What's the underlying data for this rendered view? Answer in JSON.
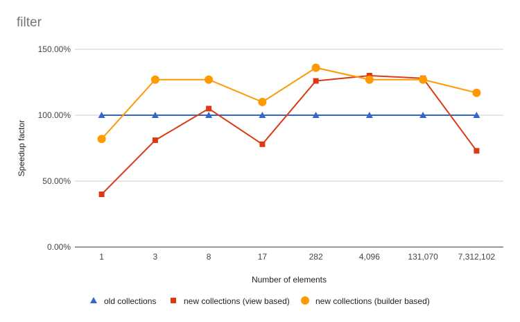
{
  "chart_data": {
    "type": "line",
    "title": "filter",
    "xlabel": "Number of elements",
    "ylabel": "Speedup factor",
    "categories": [
      "1",
      "3",
      "8",
      "17",
      "282",
      "4,096",
      "131,070",
      "7,312,102"
    ],
    "ylim": [
      0,
      150
    ],
    "yticks": [
      0,
      50,
      100,
      150
    ],
    "ytick_labels": [
      "0.00%",
      "50.00%",
      "100.00%",
      "150.00%"
    ],
    "grid": true,
    "legend_position": "bottom",
    "series": [
      {
        "name": "old collections",
        "values": [
          100,
          100,
          100,
          100,
          100,
          100,
          100,
          100
        ],
        "color": "#3366cc",
        "marker": "triangle"
      },
      {
        "name": "new collections (view based)",
        "values": [
          40,
          81,
          105,
          78,
          126,
          130,
          128,
          73
        ],
        "color": "#dc3912",
        "marker": "square"
      },
      {
        "name": "new collections (builder based)",
        "values": [
          82,
          127,
          127,
          110,
          136,
          127,
          127,
          117
        ],
        "color": "#ff9900",
        "marker": "circle"
      }
    ]
  }
}
